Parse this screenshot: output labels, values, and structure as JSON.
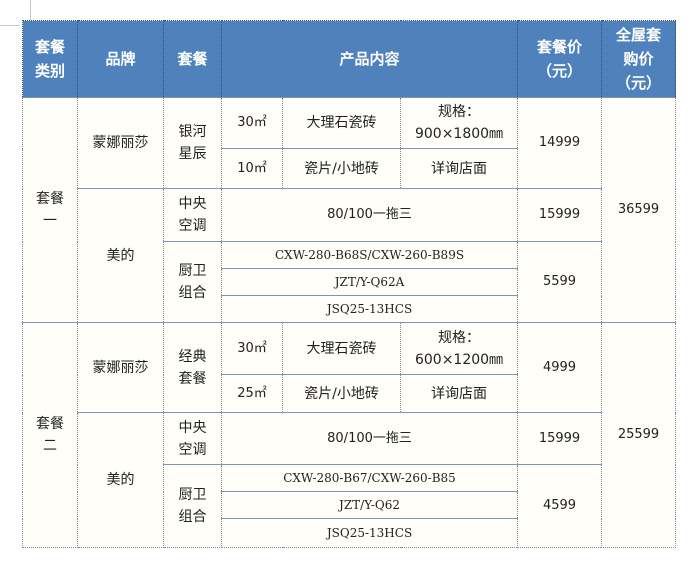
{
  "headers": {
    "category": "套餐\n类别",
    "brand": "品牌",
    "package": "套餐",
    "content": "产品内容",
    "price": "套餐价\n（元）",
    "total": "全屋套\n购价\n（元）"
  },
  "packages": [
    {
      "category": "套餐\n一",
      "total": "36599",
      "tile": {
        "brand": "蒙娜丽莎",
        "name": "银河\n星辰",
        "rows": [
          {
            "area": "30㎡",
            "product": "大理石瓷砖",
            "spec": "规格：\n900×1800㎜"
          },
          {
            "area": "10㎡",
            "product": "瓷片/小地砖",
            "spec": "详询店面"
          }
        ],
        "price": "14999"
      },
      "appliance": {
        "brand": "美的",
        "ac_name": "中央\n空调",
        "ac_content": "80/100一拖三",
        "ac_price": "15999",
        "kb_name": "厨卫\n组合",
        "kb_items": [
          "CXW-280-B68S/CXW-260-B89S",
          "JZT/Y-Q62A",
          "JSQ25-13HCS"
        ],
        "kb_price": "5599"
      }
    },
    {
      "category": "套餐\n二",
      "total": "25599",
      "tile": {
        "brand": "蒙娜丽莎",
        "name": "经典\n套餐",
        "rows": [
          {
            "area": "30㎡",
            "product": "大理石瓷砖",
            "spec": "规格：\n600×1200㎜"
          },
          {
            "area": "25㎡",
            "product": "瓷片/小地砖",
            "spec": "详询店面"
          }
        ],
        "price": "4999"
      },
      "appliance": {
        "brand": "美的",
        "ac_name": "中央\n空调",
        "ac_content": "80/100一拖三",
        "ac_price": "15999",
        "kb_name": "厨卫\n组合",
        "kb_items": [
          "CXW-280-B67/CXW-260-B85",
          "JZT/Y-Q62",
          "JSQ25-13HCS"
        ],
        "kb_price": "4599"
      }
    }
  ],
  "colors": {
    "header_bg": "#4f81bd",
    "cell_bg": "#fffef8"
  }
}
